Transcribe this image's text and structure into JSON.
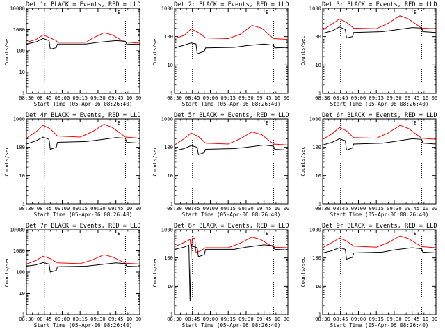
{
  "chart_data": [
    {
      "type": "line",
      "title": "Det 1r BLACK = Events, RED = LLD",
      "xlabel": "Start Time (05-Apr-06 08:26:40)",
      "ylabel": "Counts/sec",
      "corner_label": "E",
      "yscale": "log",
      "ylim": [
        1,
        10000
      ],
      "xlim": [
        "08:30",
        "10:05"
      ],
      "x_ticks": [
        "08:30",
        "08:45",
        "09:00",
        "09:15",
        "09:30",
        "09:45",
        "10:00"
      ],
      "y_ticks": [
        "1",
        "10",
        "100",
        "1000",
        "10000"
      ],
      "vlines": [
        "08:45",
        "09:53"
      ],
      "series": [
        {
          "color": "#ff0000",
          "x": [
            "08:30",
            "08:38",
            "08:44",
            "08:48",
            "08:55",
            "08:56",
            "09:20",
            "09:25",
            "09:35",
            "09:42",
            "09:52",
            "10:05"
          ],
          "values": [
            250,
            340,
            560,
            450,
            300,
            250,
            250,
            380,
            700,
            560,
            260,
            230
          ]
        },
        {
          "color": "#000000",
          "x": [
            "08:30",
            "08:38",
            "08:44",
            "08:49",
            "08:50",
            "08:55",
            "08:56",
            "09:20",
            "09:30",
            "09:45",
            "09:53",
            "09:54",
            "10:05"
          ],
          "values": [
            210,
            260,
            380,
            300,
            120,
            140,
            210,
            210,
            250,
            300,
            280,
            210,
            200
          ]
        }
      ]
    },
    {
      "type": "line",
      "title": "Det 2r BLACK = Events, RED = LLD",
      "xlabel": "Start Time (05-Apr-06 08:26:40)",
      "ylabel": "Counts/sec",
      "corner_label": "E",
      "yscale": "log",
      "ylim": [
        1,
        1000
      ],
      "xlim": [
        "08:30",
        "10:05"
      ],
      "x_ticks": [
        "08:30",
        "08:45",
        "09:00",
        "09:15",
        "09:30",
        "09:45",
        "10:00"
      ],
      "y_ticks": [
        "1",
        "10",
        "100",
        "1000"
      ],
      "vlines": [
        "08:45",
        "09:53"
      ],
      "series": [
        {
          "color": "#ff0000",
          "x": [
            "08:30",
            "08:38",
            "08:44",
            "08:50",
            "08:56",
            "09:15",
            "09:25",
            "09:35",
            "09:43",
            "09:53",
            "10:05"
          ],
          "values": [
            85,
            110,
            190,
            140,
            90,
            85,
            120,
            250,
            200,
            85,
            80
          ]
        },
        {
          "color": "#000000",
          "x": [
            "08:30",
            "08:38",
            "08:44",
            "08:48",
            "08:49",
            "08:55",
            "08:56",
            "09:20",
            "09:30",
            "09:45",
            "09:53",
            "09:54",
            "10:05"
          ],
          "values": [
            40,
            50,
            60,
            55,
            25,
            30,
            40,
            42,
            48,
            55,
            50,
            40,
            42
          ]
        }
      ]
    },
    {
      "type": "line",
      "title": "Det 3r BLACK = Events, RED = LLD",
      "xlabel": "Start Time (05-Apr-06 08:26:40)",
      "ylabel": "Counts/sec",
      "corner_label": "E",
      "yscale": "log",
      "ylim": [
        1,
        1000
      ],
      "xlim": [
        "08:30",
        "10:05"
      ],
      "x_ticks": [
        "08:30",
        "08:45",
        "09:00",
        "09:15",
        "09:30",
        "09:45",
        "10:00"
      ],
      "y_ticks": [
        "1",
        "10",
        "100",
        "1000"
      ],
      "vlines": [
        "08:45",
        "09:53"
      ],
      "series": [
        {
          "color": "#ff0000",
          "x": [
            "08:30",
            "08:38",
            "08:44",
            "08:50",
            "08:56",
            "09:15",
            "09:25",
            "09:35",
            "09:42",
            "09:53",
            "10:05"
          ],
          "values": [
            170,
            280,
            420,
            320,
            200,
            190,
            300,
            550,
            420,
            200,
            190
          ]
        },
        {
          "color": "#000000",
          "x": [
            "08:30",
            "08:38",
            "08:44",
            "08:49",
            "08:50",
            "08:55",
            "08:56",
            "09:20",
            "09:30",
            "09:45",
            "09:53",
            "09:54",
            "10:05"
          ],
          "values": [
            130,
            160,
            220,
            180,
            90,
            100,
            140,
            150,
            170,
            210,
            200,
            150,
            140
          ]
        }
      ]
    },
    {
      "type": "line",
      "title": "Det 4r BLACK = Events, RED = LLD",
      "xlabel": "Start Time (05-Apr-06 08:26:40)",
      "ylabel": "Counts/sec",
      "corner_label": "E",
      "yscale": "log",
      "ylim": [
        1,
        1000
      ],
      "xlim": [
        "08:30",
        "10:05"
      ],
      "x_ticks": [
        "08:30",
        "08:45",
        "09:00",
        "09:15",
        "09:30",
        "09:45",
        "10:00"
      ],
      "y_ticks": [
        "1",
        "10",
        "100",
        "1000"
      ],
      "vlines": [
        "08:45",
        "09:53"
      ],
      "series": [
        {
          "color": "#ff0000",
          "x": [
            "08:30",
            "08:38",
            "08:44",
            "08:50",
            "08:56",
            "09:15",
            "09:25",
            "09:35",
            "09:42",
            "09:53",
            "10:05"
          ],
          "values": [
            210,
            350,
            600,
            450,
            250,
            230,
            350,
            650,
            500,
            230,
            210
          ]
        },
        {
          "color": "#000000",
          "x": [
            "08:30",
            "08:38",
            "08:44",
            "08:49",
            "08:50",
            "08:55",
            "08:56",
            "09:20",
            "09:30",
            "09:45",
            "09:53",
            "09:54",
            "10:05"
          ],
          "values": [
            130,
            170,
            230,
            190,
            85,
            100,
            150,
            160,
            180,
            220,
            210,
            150,
            140
          ]
        }
      ]
    },
    {
      "type": "line",
      "title": "Det 5r BLACK = Events, RED = LLD",
      "xlabel": "Start Time (05-Apr-06 08:26:40)",
      "ylabel": "Counts/sec",
      "corner_label": "E",
      "yscale": "log",
      "ylim": [
        1,
        1000
      ],
      "xlim": [
        "08:30",
        "10:05"
      ],
      "x_ticks": [
        "08:30",
        "08:45",
        "09:00",
        "09:15",
        "09:30",
        "09:45",
        "10:00"
      ],
      "y_ticks": [
        "1",
        "10",
        "100",
        "1000"
      ],
      "vlines": [
        "08:45",
        "09:53"
      ],
      "series": [
        {
          "color": "#ff0000",
          "x": [
            "08:30",
            "08:38",
            "08:44",
            "08:50",
            "08:56",
            "09:15",
            "09:25",
            "09:35",
            "09:43",
            "09:53",
            "10:05"
          ],
          "values": [
            120,
            200,
            320,
            240,
            140,
            130,
            200,
            350,
            280,
            130,
            120
          ]
        },
        {
          "color": "#000000",
          "x": [
            "08:30",
            "08:38",
            "08:44",
            "08:49",
            "08:50",
            "08:55",
            "08:56",
            "09:20",
            "09:30",
            "09:45",
            "09:53",
            "09:54",
            "10:05"
          ],
          "values": [
            75,
            90,
            115,
            100,
            55,
            65,
            85,
            90,
            100,
            120,
            110,
            85,
            80
          ]
        }
      ]
    },
    {
      "type": "line",
      "title": "Det 6r BLACK = Events, RED = LLD",
      "xlabel": "Start Time (05-Apr-06 08:26:40)",
      "ylabel": "Counts/sec",
      "corner_label": "E",
      "yscale": "log",
      "ylim": [
        1,
        1000
      ],
      "xlim": [
        "08:30",
        "10:05"
      ],
      "x_ticks": [
        "08:30",
        "08:45",
        "09:00",
        "09:15",
        "09:30",
        "09:45",
        "10:00"
      ],
      "y_ticks": [
        "1",
        "10",
        "100",
        "1000"
      ],
      "vlines": [
        "08:45",
        "09:53"
      ],
      "series": [
        {
          "color": "#ff0000",
          "x": [
            "08:30",
            "08:38",
            "08:44",
            "08:50",
            "08:56",
            "09:15",
            "09:25",
            "09:35",
            "09:42",
            "09:53",
            "10:05"
          ],
          "values": [
            190,
            300,
            500,
            380,
            220,
            210,
            320,
            600,
            460,
            210,
            190
          ]
        },
        {
          "color": "#000000",
          "x": [
            "08:30",
            "08:38",
            "08:44",
            "08:49",
            "08:50",
            "08:55",
            "08:56",
            "09:20",
            "09:30",
            "09:45",
            "09:53",
            "09:54",
            "10:05"
          ],
          "values": [
            120,
            150,
            200,
            170,
            80,
            95,
            130,
            140,
            160,
            200,
            190,
            140,
            130
          ]
        }
      ]
    },
    {
      "type": "line",
      "title": "Det 7r BLACK = Events, RED = LLD",
      "xlabel": "Start Time (05-Apr-06 08:26:40)",
      "ylabel": "Counts/sec",
      "corner_label": "E",
      "yscale": "log",
      "ylim": [
        1,
        10000
      ],
      "xlim": [
        "08:30",
        "10:05"
      ],
      "x_ticks": [
        "08:30",
        "08:45",
        "09:00",
        "09:15",
        "09:30",
        "09:45",
        "10:00"
      ],
      "y_ticks": [
        "1",
        "10",
        "100",
        "1000",
        "10000"
      ],
      "vlines": [
        "08:45",
        "09:53"
      ],
      "series": [
        {
          "color": "#ff0000",
          "x": [
            "08:30",
            "08:38",
            "08:44",
            "08:50",
            "08:56",
            "09:15",
            "09:25",
            "09:35",
            "09:42",
            "09:53",
            "10:05"
          ],
          "values": [
            240,
            350,
            560,
            430,
            270,
            250,
            370,
            650,
            520,
            260,
            240
          ]
        },
        {
          "color": "#000000",
          "x": [
            "08:30",
            "08:38",
            "08:44",
            "08:49",
            "08:50",
            "08:55",
            "08:56",
            "09:20",
            "09:30",
            "09:45",
            "09:53",
            "09:54",
            "10:05"
          ],
          "values": [
            190,
            220,
            280,
            240,
            100,
            120,
            180,
            190,
            220,
            270,
            250,
            190,
            180
          ]
        }
      ]
    },
    {
      "type": "line",
      "title": "Det 8r BLACK = Events, RED = LLD",
      "xlabel": "Start Time (05-Apr-06 08:26:40)",
      "ylabel": "Counts/sec",
      "corner_label": "E",
      "yscale": "log",
      "ylim": [
        1,
        1000
      ],
      "xlim": [
        "08:30",
        "10:05"
      ],
      "x_ticks": [
        "08:30",
        "08:45",
        "09:00",
        "09:15",
        "09:30",
        "09:45",
        "10:00"
      ],
      "y_ticks": [
        "1",
        "10",
        "100",
        "1000"
      ],
      "vlines": [
        "08:45",
        "09:53"
      ],
      "series": [
        {
          "color": "#ff0000",
          "x": [
            "08:30",
            "08:38",
            "08:43",
            "08:44",
            "08:45",
            "08:47",
            "08:48",
            "08:52",
            "08:56",
            "09:15",
            "09:25",
            "09:35",
            "09:42",
            "09:53",
            "10:05"
          ],
          "values": [
            250,
            350,
            450,
            200,
            480,
            500,
            150,
            180,
            230,
            230,
            330,
            550,
            450,
            240,
            230
          ]
        },
        {
          "color": "#000000",
          "x": [
            "08:30",
            "08:38",
            "08:42",
            "08:43",
            "08:44",
            "08:45",
            "08:49",
            "08:50",
            "08:55",
            "08:56",
            "09:20",
            "09:30",
            "09:45",
            "09:53",
            "09:54",
            "10:05"
          ],
          "values": [
            200,
            240,
            280,
            3,
            300,
            260,
            230,
            110,
            130,
            200,
            200,
            240,
            290,
            270,
            200,
            190
          ]
        }
      ]
    },
    {
      "type": "line",
      "title": "Det 9r BLACK = Events, RED = LLD",
      "xlabel": "Start Time (05-Apr-06 08:26:40)",
      "ylabel": "Counts/sec",
      "corner_label": "E",
      "yscale": "log",
      "ylim": [
        1,
        1000
      ],
      "xlim": [
        "08:30",
        "10:05"
      ],
      "x_ticks": [
        "08:30",
        "08:45",
        "09:00",
        "09:15",
        "09:30",
        "09:45",
        "10:00"
      ],
      "y_ticks": [
        "1",
        "10",
        "100",
        "1000"
      ],
      "vlines": [
        "08:45",
        "09:53"
      ],
      "series": [
        {
          "color": "#ff0000",
          "x": [
            "08:30",
            "08:38",
            "08:44",
            "08:50",
            "08:56",
            "09:15",
            "09:25",
            "09:35",
            "09:42",
            "09:53",
            "10:05"
          ],
          "values": [
            230,
            350,
            500,
            400,
            260,
            240,
            350,
            600,
            480,
            250,
            230
          ]
        },
        {
          "color": "#000000",
          "x": [
            "08:30",
            "08:38",
            "08:44",
            "08:49",
            "08:50",
            "08:55",
            "08:56",
            "09:20",
            "09:30",
            "09:45",
            "09:53",
            "09:54",
            "10:05"
          ],
          "values": [
            150,
            180,
            230,
            200,
            90,
            105,
            150,
            160,
            190,
            230,
            210,
            160,
            150
          ]
        }
      ]
    }
  ]
}
